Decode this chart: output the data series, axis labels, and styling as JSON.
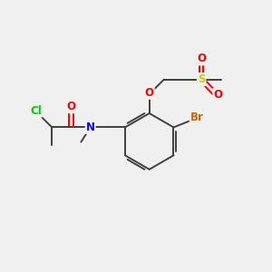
{
  "bg_color": "#f0f0f0",
  "atom_colors": {
    "C": "#404040",
    "N": "#0000ff",
    "O": "#ff0000",
    "Cl": "#00cc00",
    "Br": "#cc6600",
    "S": "#cccc00"
  },
  "bond_color": "#404040",
  "figsize": [
    3.0,
    3.0
  ],
  "dpi": 100
}
